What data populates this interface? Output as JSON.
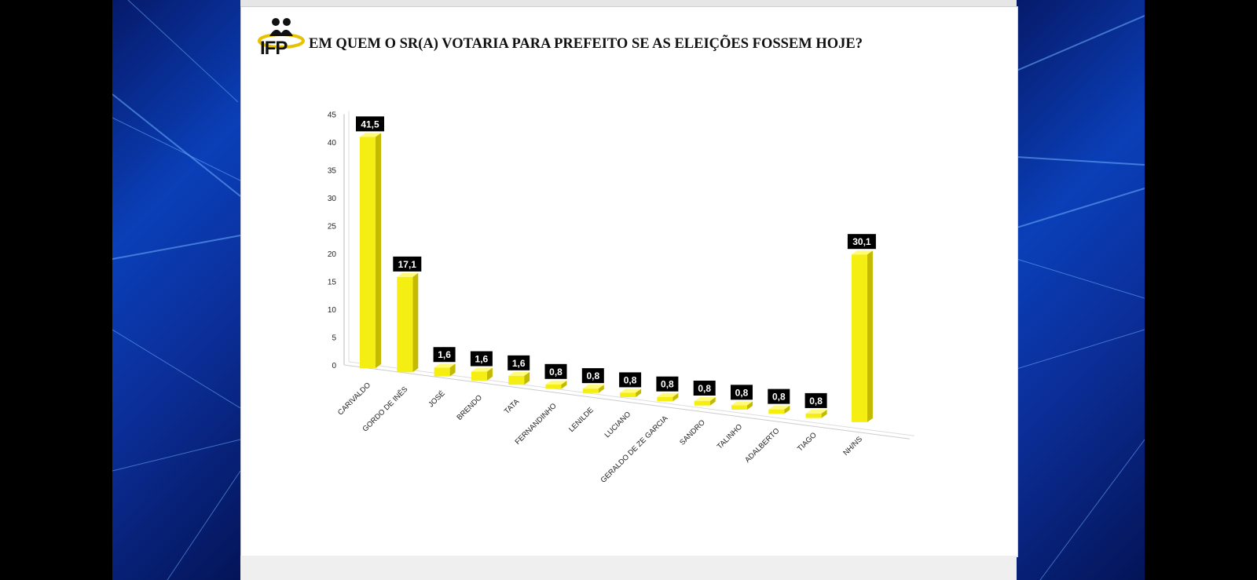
{
  "header": {
    "logo_text": "IFP",
    "title": "EM QUEM O SR(A) VOTARIA PARA PREFEITO SE AS ELEIÇÕES FOSSEM HOJE?"
  },
  "colors": {
    "bar": "#f5ee12",
    "bar_side": "#c4bb00",
    "bar_top": "#fffa7a",
    "label_bg": "#000000",
    "background_blue": "#0a3fb8"
  },
  "icons": {
    "logo": "two-people-logo-icon"
  },
  "chart_data": {
    "type": "bar",
    "title": "EM QUEM O SR(A) VOTARIA PARA PREFEITO SE AS ELEIÇÕES FOSSEM HOJE?",
    "categories": [
      "CARIVALDO",
      "GORDO DE INÊS",
      "JOSÉ",
      "BRENDO",
      "TATA",
      "FERNANDINHO",
      "LENILDE",
      "LUCIANO",
      "GERALDO DE ZE GARCIA",
      "SANDRO",
      "TALINHO",
      "ADALBERTO",
      "TIAGO",
      "NH/NS"
    ],
    "values": [
      41.5,
      17.1,
      1.6,
      1.6,
      1.6,
      0.8,
      0.8,
      0.8,
      0.8,
      0.8,
      0.8,
      0.8,
      0.8,
      30.1
    ],
    "value_labels": [
      "41,5",
      "17,1",
      "1,6",
      "1,6",
      "1,6",
      "0,8",
      "0,8",
      "0,8",
      "0,8",
      "0,8",
      "0,8",
      "0,8",
      "0,8",
      "30,1"
    ],
    "y_ticks": [
      "0",
      "5",
      "10",
      "15",
      "20",
      "25",
      "30",
      "35",
      "40",
      "45"
    ],
    "ylim": [
      0,
      45
    ],
    "style": "3d-column",
    "grid": false,
    "legend": "none"
  }
}
